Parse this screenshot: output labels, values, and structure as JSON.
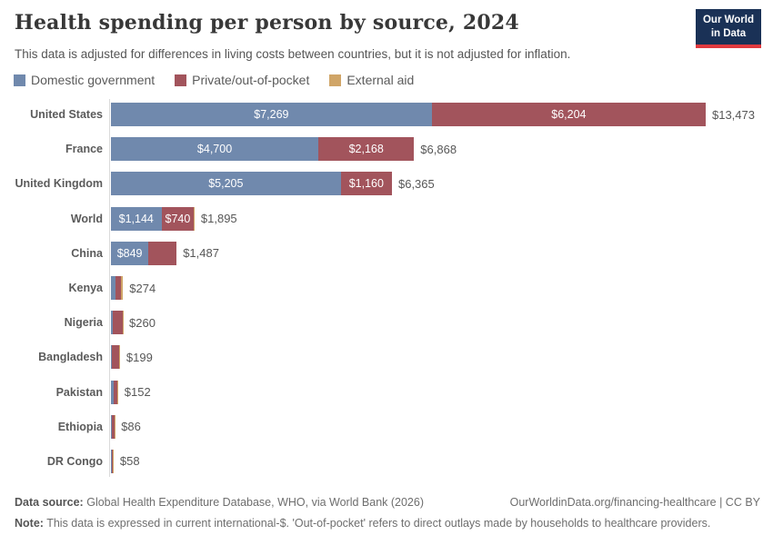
{
  "header": {
    "title": "Health spending per person by source, 2024",
    "subtitle": "This data is adjusted for differences in living costs between countries, but it is not adjusted for inflation.",
    "logo_line1": "Our World",
    "logo_line2": "in Data",
    "logo_bg_color": "#1a3156",
    "logo_accent_color": "#e0393e"
  },
  "legend": [
    {
      "label": "Domestic government",
      "color": "#7089ad"
    },
    {
      "label": "Private/out-of-pocket",
      "color": "#a2545c"
    },
    {
      "label": "External aid",
      "color": "#d0a567"
    }
  ],
  "chart_data": {
    "type": "bar",
    "orientation": "horizontal",
    "stacked": true,
    "value_unit": "current international-$ per person",
    "series_names": [
      "Domestic government",
      "Private/out-of-pocket",
      "External aid"
    ],
    "max_total": 13473,
    "rows": [
      {
        "category": "United States",
        "total": 13473,
        "total_label": "$13,473",
        "segments": [
          {
            "series": "Domestic government",
            "color_index": 0,
            "value": 7269,
            "label": "$7,269"
          },
          {
            "series": "Private/out-of-pocket",
            "color_index": 1,
            "value": 6204,
            "label": "$6,204"
          }
        ]
      },
      {
        "category": "France",
        "total": 6868,
        "total_label": "$6,868",
        "segments": [
          {
            "series": "Domestic government",
            "color_index": 0,
            "value": 4700,
            "label": "$4,700"
          },
          {
            "series": "Private/out-of-pocket",
            "color_index": 1,
            "value": 2168,
            "label": "$2,168"
          }
        ]
      },
      {
        "category": "United Kingdom",
        "total": 6365,
        "total_label": "$6,365",
        "segments": [
          {
            "series": "Domestic government",
            "color_index": 0,
            "value": 5205,
            "label": "$5,205"
          },
          {
            "series": "Private/out-of-pocket",
            "color_index": 1,
            "value": 1160,
            "label": "$1,160"
          }
        ]
      },
      {
        "category": "World",
        "total": 1895,
        "total_label": "$1,895",
        "segments": [
          {
            "series": "Domestic government",
            "color_index": 0,
            "value": 1144,
            "label": "$1,144"
          },
          {
            "series": "Private/out-of-pocket",
            "color_index": 1,
            "value": 740,
            "label": "$740"
          },
          {
            "series": "External aid",
            "color_index": 2,
            "value": 11,
            "label": ""
          }
        ]
      },
      {
        "category": "China",
        "total": 1487,
        "total_label": "$1,487",
        "segments": [
          {
            "series": "Domestic government",
            "color_index": 0,
            "value": 849,
            "label": "$849"
          },
          {
            "series": "Private/out-of-pocket",
            "color_index": 1,
            "value": 638,
            "label": ""
          }
        ]
      },
      {
        "category": "Kenya",
        "total": 274,
        "total_label": "$274",
        "segments": [
          {
            "series": "Domestic government",
            "color_index": 0,
            "value": 110,
            "label": ""
          },
          {
            "series": "Private/out-of-pocket",
            "color_index": 1,
            "value": 115,
            "label": ""
          },
          {
            "series": "External aid",
            "color_index": 2,
            "value": 49,
            "label": ""
          }
        ]
      },
      {
        "category": "Nigeria",
        "total": 260,
        "total_label": "$260",
        "segments": [
          {
            "series": "Domestic government",
            "color_index": 0,
            "value": 30,
            "label": ""
          },
          {
            "series": "Private/out-of-pocket",
            "color_index": 1,
            "value": 226,
            "label": ""
          },
          {
            "series": "External aid",
            "color_index": 2,
            "value": 4,
            "label": ""
          }
        ]
      },
      {
        "category": "Bangladesh",
        "total": 199,
        "total_label": "$199",
        "segments": [
          {
            "series": "Domestic government",
            "color_index": 0,
            "value": 15,
            "label": ""
          },
          {
            "series": "Private/out-of-pocket",
            "color_index": 1,
            "value": 180,
            "label": ""
          },
          {
            "series": "External aid",
            "color_index": 2,
            "value": 4,
            "label": ""
          }
        ]
      },
      {
        "category": "Pakistan",
        "total": 152,
        "total_label": "$152",
        "segments": [
          {
            "series": "Domestic government",
            "color_index": 0,
            "value": 51,
            "label": ""
          },
          {
            "series": "Private/out-of-pocket",
            "color_index": 1,
            "value": 99,
            "label": ""
          },
          {
            "series": "External aid",
            "color_index": 2,
            "value": 2,
            "label": ""
          }
        ]
      },
      {
        "category": "Ethiopia",
        "total": 86,
        "total_label": "$86",
        "segments": [
          {
            "series": "Domestic government",
            "color_index": 0,
            "value": 20,
            "label": ""
          },
          {
            "series": "Private/out-of-pocket",
            "color_index": 1,
            "value": 55,
            "label": ""
          },
          {
            "series": "External aid",
            "color_index": 2,
            "value": 11,
            "label": ""
          }
        ]
      },
      {
        "category": "DR Congo",
        "total": 58,
        "total_label": "$58",
        "segments": [
          {
            "series": "Domestic government",
            "color_index": 0,
            "value": 10,
            "label": ""
          },
          {
            "series": "Private/out-of-pocket",
            "color_index": 1,
            "value": 40,
            "label": ""
          },
          {
            "series": "External aid",
            "color_index": 2,
            "value": 8,
            "label": ""
          }
        ]
      }
    ]
  },
  "footer": {
    "datasource_label": "Data source:",
    "datasource_text": "Global Health Expenditure Database, WHO, via World Bank (2026)",
    "link_text": "OurWorldinData.org/financing-healthcare | CC BY",
    "note_label": "Note:",
    "note_text": "This data is expressed in current international-$. 'Out-of-pocket' refers to direct outlays made by households to healthcare providers."
  }
}
